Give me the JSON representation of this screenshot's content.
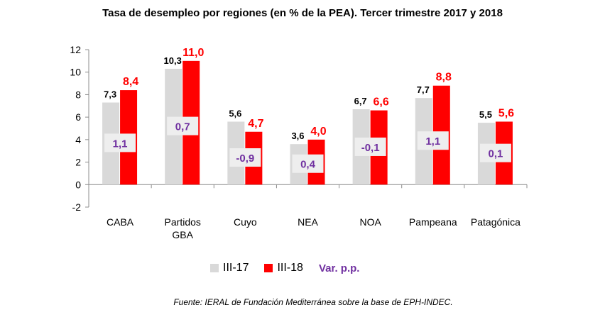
{
  "chart_data": {
    "type": "bar",
    "title": "Tasa de desempleo por regiones (en % de la PEA). Tercer trimestre 2017 y 2018",
    "categories": [
      "CABA",
      "Partidos GBA",
      "Cuyo",
      "NEA",
      "NOA",
      "Pampeana",
      "Patagónica"
    ],
    "category_lines": [
      [
        "CABA"
      ],
      [
        "Partidos",
        "GBA"
      ],
      [
        "Cuyo"
      ],
      [
        "NEA"
      ],
      [
        "NOA"
      ],
      [
        "Pampeana"
      ],
      [
        "Patagónica"
      ]
    ],
    "series": [
      {
        "name": "III-17",
        "color": "#d9d9d9",
        "values": [
          7.3,
          10.3,
          5.6,
          3.6,
          6.7,
          7.7,
          5.5
        ],
        "labels": [
          "7,3",
          "10,3",
          "5,6",
          "3,6",
          "6,7",
          "7,7",
          "5,5"
        ]
      },
      {
        "name": "III-18",
        "color": "#ff0000",
        "values": [
          8.4,
          11.0,
          4.7,
          4.0,
          6.6,
          8.8,
          5.6
        ],
        "labels": [
          "8,4",
          "11,0",
          "4,7",
          "4,0",
          "6,6",
          "8,8",
          "5,6"
        ]
      }
    ],
    "variation": {
      "name": "Var. p.p.",
      "color": "#7030a0",
      "values": [
        1.1,
        0.7,
        -0.9,
        0.4,
        -0.1,
        1.1,
        0.1
      ],
      "labels": [
        "1,1",
        "0,7",
        "-0,9",
        "0,4",
        "-0,1",
        "1,1",
        "0,1"
      ]
    },
    "ylim": [
      -2,
      12
    ],
    "yticks": [
      -2,
      0,
      2,
      4,
      6,
      8,
      10,
      12
    ],
    "grid": false,
    "legend_position": "bottom"
  },
  "legend": {
    "s1": "III-17",
    "s2": "III-18",
    "var": "Var. p.p."
  },
  "colors": {
    "s1": "#d9d9d9",
    "s2": "#ff0000",
    "var": "#7030a0"
  },
  "source": "Fuente: IERAL de Fundación Mediterránea sobre la base de EPH-INDEC."
}
